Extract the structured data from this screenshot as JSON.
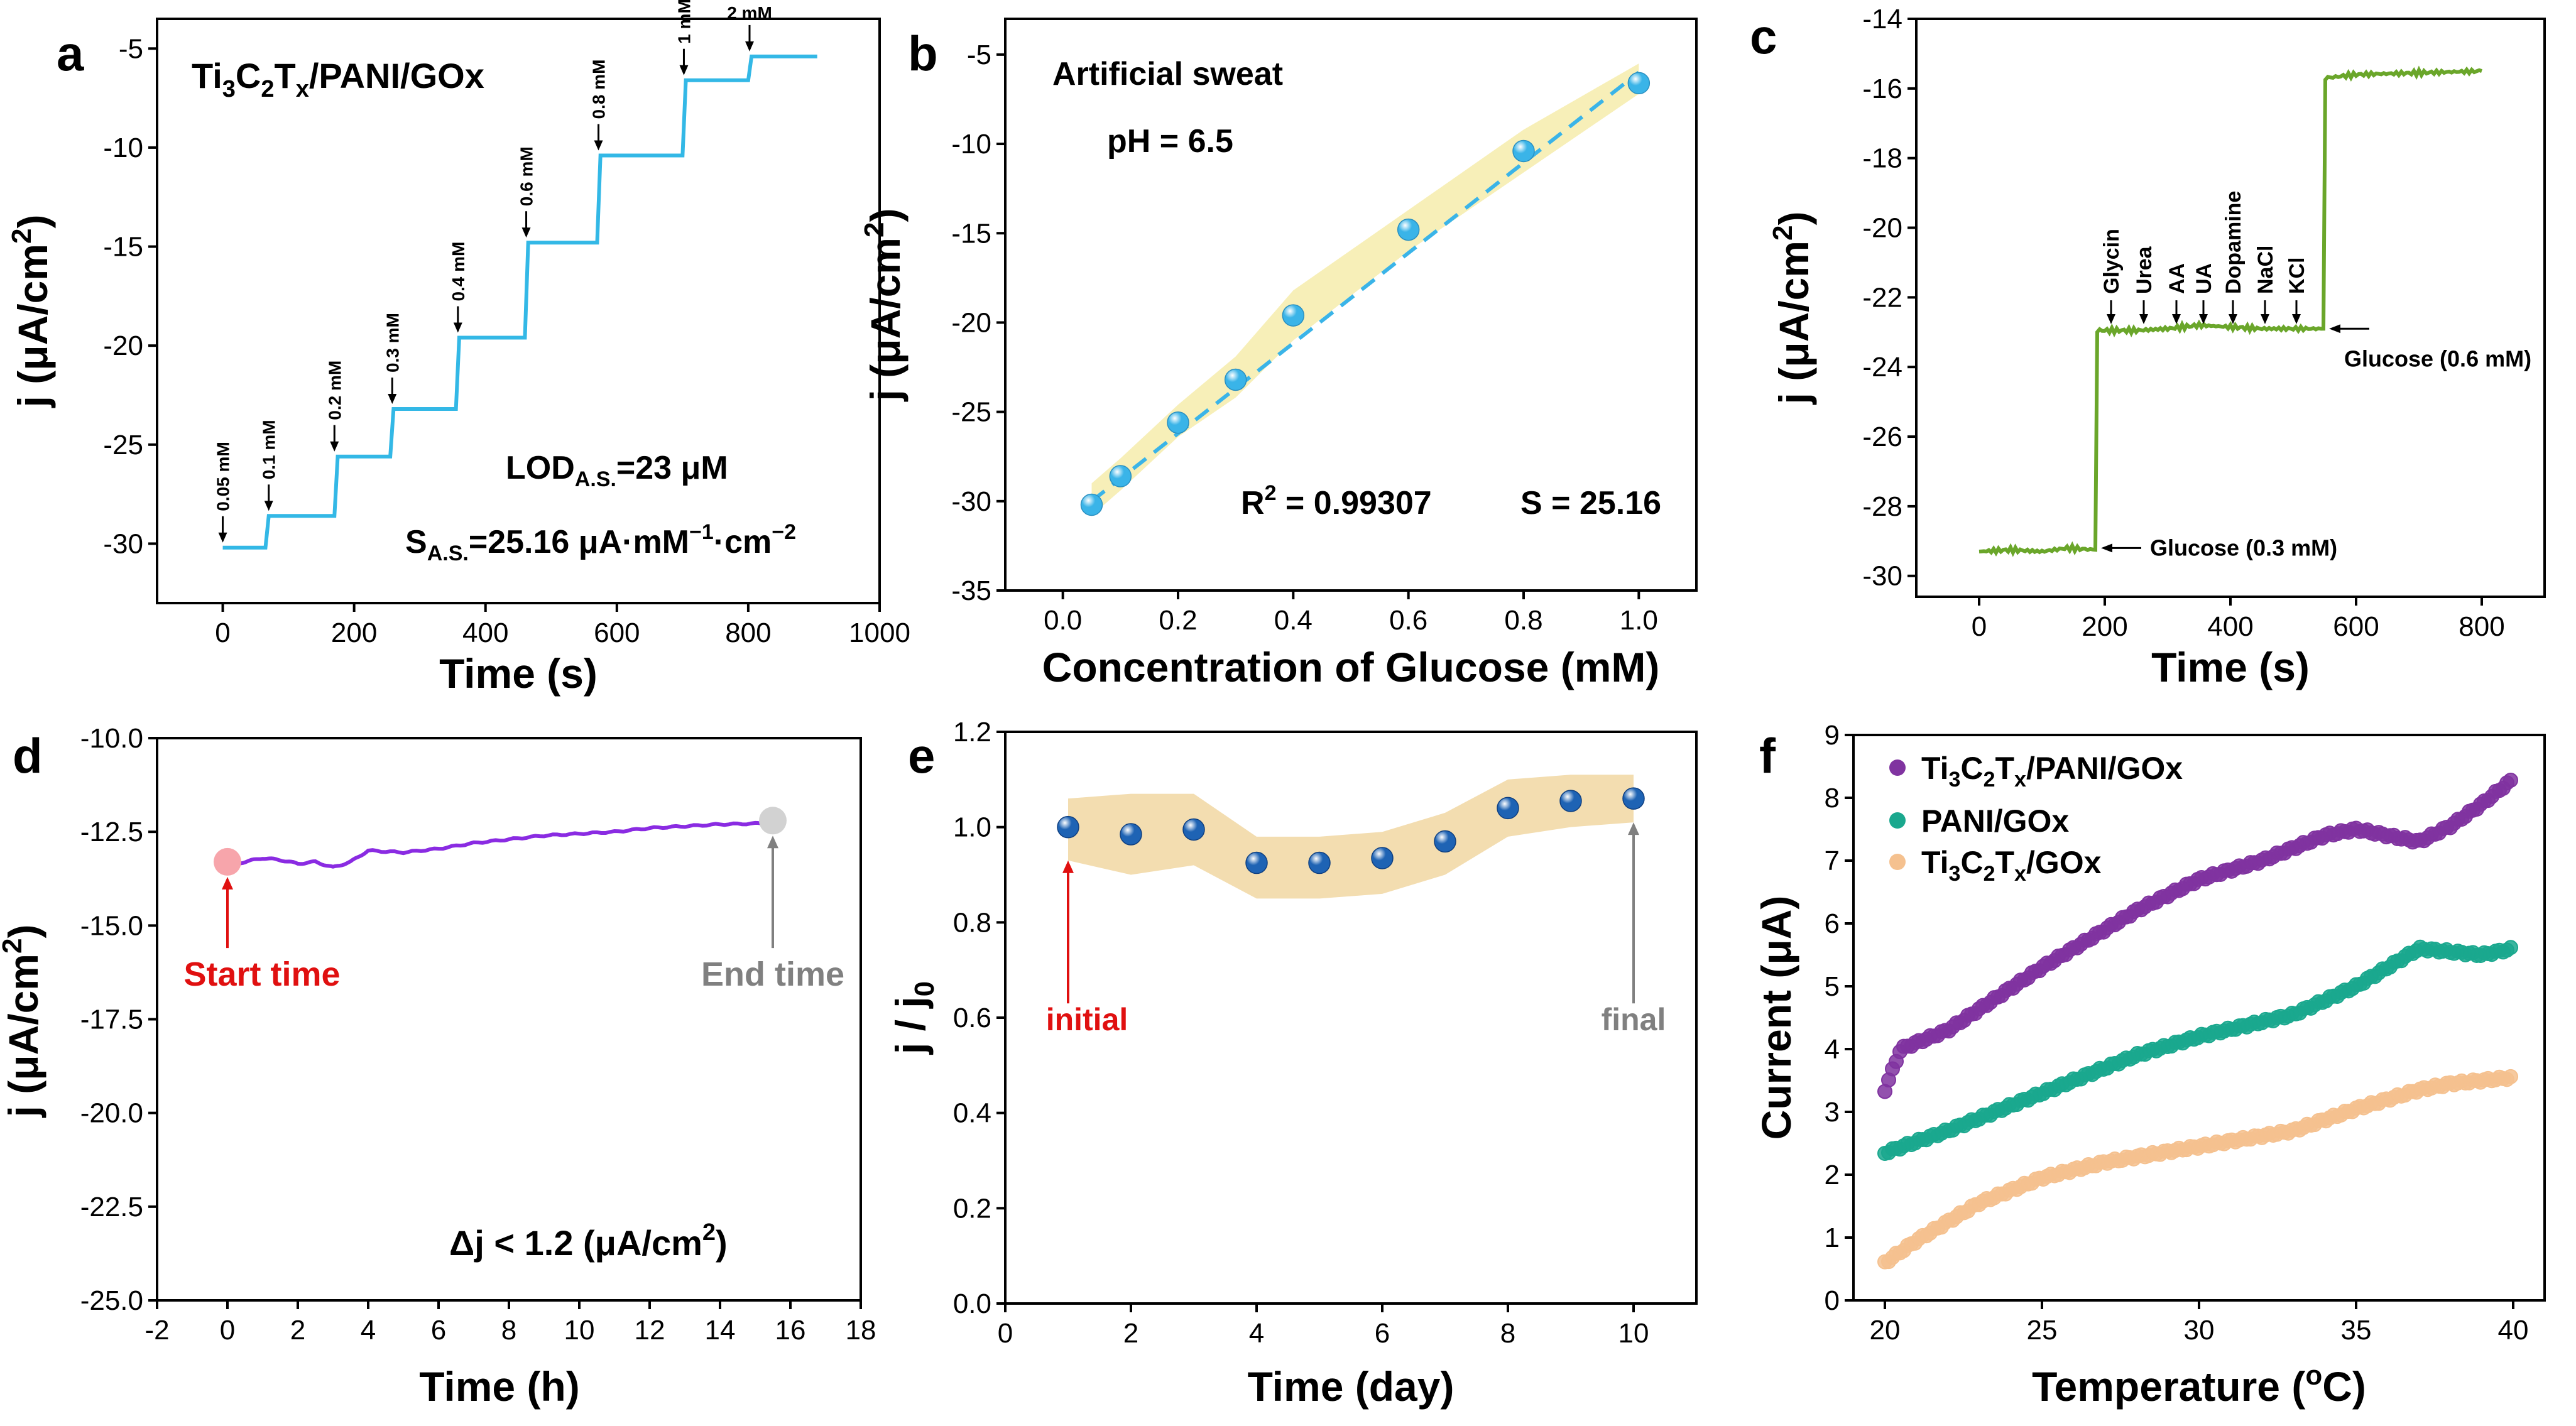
{
  "chart_data": [
    {
      "id": "a",
      "type": "line",
      "panel_letter": "a",
      "title": "Ti3C2Tx/PANI/GOx",
      "xlabel": "Time (s)",
      "ylabel": "j (μA/cm2)",
      "xlim": [
        -100,
        1000
      ],
      "ylim": [
        -33,
        -3.5
      ],
      "xticks": [
        0,
        200,
        400,
        600,
        800,
        1000
      ],
      "yticks": [
        -30,
        -25,
        -20,
        -15,
        -10,
        -5
      ],
      "color": "#33b8e6",
      "series": [
        {
          "name": "current",
          "points": [
            [
              0,
              -30.2
            ],
            [
              65,
              -30.2
            ],
            [
              70,
              -28.6
            ],
            [
              170,
              -28.6
            ],
            [
              175,
              -25.6
            ],
            [
              255,
              -25.6
            ],
            [
              260,
              -23.2
            ],
            [
              355,
              -23.2
            ],
            [
              360,
              -19.6
            ],
            [
              460,
              -19.6
            ],
            [
              465,
              -14.8
            ],
            [
              570,
              -14.8
            ],
            [
              575,
              -10.4
            ],
            [
              700,
              -10.4
            ],
            [
              705,
              -6.6
            ],
            [
              800,
              -6.6
            ],
            [
              805,
              -5.4
            ],
            [
              905,
              -5.4
            ]
          ]
        }
      ],
      "step_annotations": [
        {
          "text": "0.05 mM",
          "x": 0,
          "y": -30.2
        },
        {
          "text": "0.1 mM",
          "x": 70,
          "y": -28.6
        },
        {
          "text": "0.2 mM",
          "x": 170,
          "y": -25.6
        },
        {
          "text": "0.3 mM",
          "x": 258,
          "y": -23.2
        },
        {
          "text": "0.4 mM",
          "x": 358,
          "y": -19.6
        },
        {
          "text": "0.6 mM",
          "x": 462,
          "y": -14.8
        },
        {
          "text": "0.8 mM",
          "x": 572,
          "y": -10.4
        },
        {
          "text": "1 mM",
          "x": 702,
          "y": -6.6
        },
        {
          "text": "2 mM",
          "x": 802,
          "y": -5.4
        }
      ],
      "lod_main": "LOD",
      "lod_sub": "A.S.",
      "lod_value": "=23 μM",
      "sens_main": "S",
      "sens_sub": "A.S.",
      "sens_value": "=25.16  μA·mM",
      "sens_exp1": "−1",
      "sens_mid": "·cm",
      "sens_exp2": "−2"
    },
    {
      "id": "b",
      "type": "scatter",
      "panel_letter": "b",
      "title": "Artificial sweat",
      "subtitle": "pH = 6.5",
      "xlabel": "Concentration of Glucose (mM)",
      "ylabel": "j (μA/cm2)",
      "xlim": [
        -0.1,
        1.1
      ],
      "ylim": [
        -35,
        -3
      ],
      "xticks": [
        0.0,
        0.2,
        0.4,
        0.6,
        0.8,
        1.0
      ],
      "yticks": [
        -35,
        -30,
        -25,
        -20,
        -15,
        -10,
        -5
      ],
      "points": [
        [
          0.05,
          -30.2
        ],
        [
          0.1,
          -28.6
        ],
        [
          0.2,
          -25.6
        ],
        [
          0.3,
          -23.2
        ],
        [
          0.4,
          -19.6
        ],
        [
          0.6,
          -14.8
        ],
        [
          0.8,
          -10.4
        ],
        [
          1.0,
          -6.6
        ]
      ],
      "fit_line": [
        [
          0.05,
          -30.0
        ],
        [
          1.0,
          -6.0
        ]
      ],
      "confidence_band": {
        "x": [
          0.05,
          0.1,
          0.2,
          0.3,
          0.4,
          0.6,
          0.8,
          1.0
        ],
        "upper": [
          -29.0,
          -27.6,
          -24.6,
          -21.9,
          -18.2,
          -13.7,
          -9.2,
          -5.5
        ],
        "lower": [
          -30.8,
          -29.4,
          -26.4,
          -24.2,
          -21.0,
          -16.0,
          -11.6,
          -7.2
        ]
      },
      "r2_text": "R",
      "r2_exp": "2",
      "r2_value": " = 0.99307",
      "s_text": "S = 25.16",
      "color": "#3ab4e8",
      "band_color": "#f7efb8"
    },
    {
      "id": "c",
      "type": "line",
      "panel_letter": "c",
      "xlabel": "Time (s)",
      "ylabel": "j (μA/cm2)",
      "xlim": [
        -100,
        900
      ],
      "ylim": [
        -30.6,
        -14
      ],
      "xticks": [
        0,
        200,
        400,
        600,
        800
      ],
      "yticks": [
        -30,
        -28,
        -26,
        -24,
        -22,
        -20,
        -18,
        -16,
        -14
      ],
      "color": "#6aa62a",
      "series": [
        {
          "name": "current",
          "points": [
            [
              0,
              -29.3
            ],
            [
              50,
              -29.25
            ],
            [
              100,
              -29.3
            ],
            [
              140,
              -29.2
            ],
            [
              185,
              -29.25
            ],
            [
              188,
              -22.95
            ],
            [
              250,
              -22.95
            ],
            [
              300,
              -22.9
            ],
            [
              350,
              -22.8
            ],
            [
              400,
              -22.85
            ],
            [
              450,
              -22.9
            ],
            [
              500,
              -22.9
            ],
            [
              548,
              -22.9
            ],
            [
              551,
              -15.7
            ],
            [
              600,
              -15.6
            ],
            [
              700,
              -15.55
            ],
            [
              800,
              -15.5
            ]
          ]
        }
      ],
      "interferents": [
        {
          "text": "Glycin",
          "x": 210
        },
        {
          "text": "Urea",
          "x": 262
        },
        {
          "text": "AA",
          "x": 314
        },
        {
          "text": "UA",
          "x": 357
        },
        {
          "text": "Dopamine",
          "x": 404
        },
        {
          "text": "NaCl",
          "x": 455
        },
        {
          "text": "KCl",
          "x": 505
        }
      ],
      "glucose_labels": [
        {
          "text": "Glucose (0.3 mM)",
          "x": 188,
          "y": -29.2
        },
        {
          "text": "Glucose (0.6 mM)",
          "x": 551,
          "y": -22.9
        }
      ]
    },
    {
      "id": "d",
      "type": "line",
      "panel_letter": "d",
      "xlabel": "Time (h)",
      "ylabel": "j (μA/cm2)",
      "xlim": [
        -2,
        18
      ],
      "ylim": [
        -25.0,
        -10.0
      ],
      "xticks": [
        -2,
        0,
        2,
        4,
        6,
        8,
        10,
        12,
        14,
        16,
        18
      ],
      "yticks": [
        -25.0,
        -22.5,
        -20.0,
        -17.5,
        -15.0,
        -12.5,
        -10.0
      ],
      "color": "#8a2be2",
      "series": [
        {
          "name": "current",
          "points": [
            [
              0,
              -13.4
            ],
            [
              0.5,
              -13.3
            ],
            [
              1,
              -13.2
            ],
            [
              1.5,
              -13.25
            ],
            [
              2,
              -13.35
            ],
            [
              2.5,
              -13.3
            ],
            [
              3,
              -13.45
            ],
            [
              3.5,
              -13.3
            ],
            [
              4,
              -13.0
            ],
            [
              5,
              -13.05
            ],
            [
              6,
              -12.95
            ],
            [
              7,
              -12.8
            ],
            [
              8,
              -12.7
            ],
            [
              9,
              -12.6
            ],
            [
              10,
              -12.55
            ],
            [
              11,
              -12.5
            ],
            [
              12,
              -12.4
            ],
            [
              13,
              -12.35
            ],
            [
              14,
              -12.3
            ],
            [
              15,
              -12.28
            ],
            [
              15.5,
              -12.25
            ]
          ]
        }
      ],
      "start_marker": {
        "x": 0,
        "y": -13.3,
        "label": "Start time"
      },
      "end_marker": {
        "x": 15.5,
        "y": -12.2,
        "label": "End time"
      },
      "delta_text": "Δj < 1.2 (μA/cm",
      "delta_exp": "2",
      "delta_close": ")"
    },
    {
      "id": "e",
      "type": "scatter",
      "panel_letter": "e",
      "xlabel": "Time (day)",
      "ylabel": "j / j0",
      "xlim": [
        0,
        11
      ],
      "ylim": [
        0.0,
        1.2
      ],
      "xticks": [
        0,
        2,
        4,
        6,
        8,
        10
      ],
      "yticks": [
        0.0,
        0.2,
        0.4,
        0.6,
        0.8,
        1.0,
        1.2
      ],
      "points": [
        [
          1,
          1.0
        ],
        [
          2,
          0.985
        ],
        [
          3,
          0.995
        ],
        [
          4,
          0.925
        ],
        [
          5,
          0.925
        ],
        [
          6,
          0.935
        ],
        [
          7,
          0.97
        ],
        [
          8,
          1.04
        ],
        [
          9,
          1.055
        ],
        [
          10,
          1.06
        ]
      ],
      "band": {
        "x": [
          1,
          2,
          3,
          4,
          5,
          6,
          7,
          8,
          9,
          10
        ],
        "upper": [
          1.06,
          1.07,
          1.07,
          0.98,
          0.98,
          0.99,
          1.03,
          1.1,
          1.11,
          1.11
        ],
        "lower": [
          0.93,
          0.9,
          0.92,
          0.85,
          0.85,
          0.86,
          0.9,
          0.98,
          1.0,
          1.01
        ]
      },
      "initial_label": "initial",
      "final_label": "final",
      "color": "#1e63b4",
      "band_color": "#f3ddb0"
    },
    {
      "id": "f",
      "type": "scatter",
      "panel_letter": "f",
      "xlabel": "Temperature (",
      "xlabel_sup": "o",
      "xlabel_end": "C)",
      "ylabel": "Current (μA)",
      "xlim": [
        19,
        41
      ],
      "ylim": [
        0,
        9
      ],
      "xticks": [
        20,
        25,
        30,
        35,
        40
      ],
      "yticks": [
        0,
        1,
        2,
        3,
        4,
        5,
        6,
        7,
        8,
        9
      ],
      "series": [
        {
          "name": "Ti3C2Tx/PANI/GOx",
          "legend_main": "Ti",
          "color": "#8033a0",
          "anchors": [
            [
              20,
              3.35
            ],
            [
              20.5,
              4.0
            ],
            [
              22,
              4.3
            ],
            [
              25,
              5.3
            ],
            [
              28,
              6.2
            ],
            [
              30,
              6.7
            ],
            [
              32,
              7.0
            ],
            [
              34,
              7.4
            ],
            [
              35,
              7.5
            ],
            [
              37,
              7.3
            ],
            [
              38,
              7.55
            ],
            [
              39,
              7.9
            ],
            [
              40,
              8.3
            ]
          ]
        },
        {
          "name": "PANI/GOx",
          "legend_main": "PANI/GOx",
          "color": "#1aa88e",
          "anchors": [
            [
              20,
              2.35
            ],
            [
              22,
              2.7
            ],
            [
              25,
              3.3
            ],
            [
              28,
              3.9
            ],
            [
              30,
              4.2
            ],
            [
              33,
              4.55
            ],
            [
              35,
              5.0
            ],
            [
              36,
              5.3
            ],
            [
              37,
              5.6
            ],
            [
              38,
              5.55
            ],
            [
              39,
              5.5
            ],
            [
              40,
              5.6
            ]
          ]
        },
        {
          "name": "Ti3C2Tx/GOx",
          "legend_main": "Ti",
          "color": "#f5c18f",
          "anchors": [
            [
              20,
              0.6
            ],
            [
              21,
              0.95
            ],
            [
              23,
              1.55
            ],
            [
              25,
              1.95
            ],
            [
              27,
              2.2
            ],
            [
              30,
              2.45
            ],
            [
              33,
              2.7
            ],
            [
              35,
              3.05
            ],
            [
              36,
              3.2
            ],
            [
              37,
              3.35
            ],
            [
              38,
              3.45
            ],
            [
              40,
              3.55
            ]
          ]
        }
      ]
    }
  ]
}
